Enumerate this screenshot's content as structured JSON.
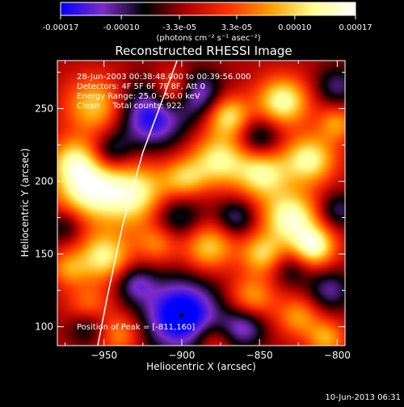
{
  "colorbar": {
    "tick_labels": [
      "-0.00017",
      "-0.00010",
      "-3.3e-05",
      "3.3e-05",
      "0.00010",
      "0.00017"
    ],
    "tick_values": [
      -0.00017,
      -0.0001,
      -3.3e-05,
      3.3e-05,
      0.0001,
      0.00017
    ],
    "range": [
      -0.00017,
      0.00017
    ],
    "unit_label": "(photons cm⁻² s⁻¹ asec⁻²)",
    "colors": [
      "#0000ff",
      "#7d2cc9",
      "#000000",
      "#b00000",
      "#ff3300",
      "#ffa000",
      "#ffff90",
      "#ffffff"
    ]
  },
  "chart_data": {
    "type": "heatmap",
    "title": "Reconstructed RHESSI Image",
    "xlabel": "Heliocentric X (arcsec)",
    "ylabel": "Heliocentric Y (arcsec)",
    "xlim": [
      -980,
      -795
    ],
    "ylim": [
      87,
      283
    ],
    "x_ticks": [
      -950,
      -900,
      -850,
      -800
    ],
    "y_ticks": [
      100,
      150,
      200,
      250
    ],
    "info_lines": [
      "28-Jun-2003 00:38:48.000 to 00:39:56.000",
      "Detectors: 4F 5F 6F 7F 8F, Att 0",
      "Energy Range: 25.0 - 50.0 keV",
      "Clean     Total counts: 922."
    ],
    "peak_label": "Position of Peak = [-811,160]",
    "peak_position": [
      -811,
      160
    ],
    "peak_marker": [
      -900,
      108
    ],
    "limb_curve": [
      [
        -903,
        283
      ],
      [
        -925,
        220
      ],
      [
        -938,
        170
      ],
      [
        -948,
        120
      ],
      [
        -954,
        87
      ]
    ],
    "sources": [
      [
        -835,
        255,
        12,
        0.95
      ],
      [
        -870,
        245,
        10,
        0.8
      ],
      [
        -905,
        262,
        10,
        0.7
      ],
      [
        -955,
        252,
        14,
        0.75
      ],
      [
        -970,
        215,
        11,
        0.6
      ],
      [
        -960,
        195,
        16,
        1.0
      ],
      [
        -928,
        190,
        16,
        0.9
      ],
      [
        -898,
        202,
        10,
        0.6
      ],
      [
        -876,
        215,
        13,
        0.85
      ],
      [
        -848,
        205,
        12,
        0.85
      ],
      [
        -818,
        215,
        12,
        0.9
      ],
      [
        -800,
        240,
        9,
        0.55
      ],
      [
        -830,
        175,
        13,
        1.0
      ],
      [
        -815,
        155,
        10,
        0.95
      ],
      [
        -848,
        150,
        10,
        0.7
      ],
      [
        -883,
        155,
        12,
        0.75
      ],
      [
        -915,
        158,
        10,
        0.55
      ],
      [
        -950,
        148,
        12,
        0.85
      ],
      [
        -973,
        140,
        9,
        0.5
      ],
      [
        -960,
        115,
        10,
        0.45
      ],
      [
        -855,
        120,
        11,
        0.6
      ],
      [
        -825,
        107,
        10,
        0.55
      ],
      [
        -807,
        92,
        9,
        0.6
      ],
      [
        -940,
        95,
        10,
        0.55
      ],
      [
        -880,
        90,
        9,
        0.4
      ],
      [
        -920,
        245,
        16,
        -0.85
      ],
      [
        -890,
        260,
        11,
        -0.7
      ],
      [
        -850,
        230,
        10,
        -0.5
      ],
      [
        -800,
        265,
        10,
        -0.45
      ],
      [
        -945,
        220,
        9,
        -0.5
      ],
      [
        -905,
        175,
        13,
        -0.6
      ],
      [
        -865,
        175,
        9,
        -0.5
      ],
      [
        -800,
        180,
        9,
        -0.45
      ],
      [
        -975,
        170,
        9,
        -0.4
      ],
      [
        -900,
        108,
        18,
        -1.0
      ],
      [
        -860,
        100,
        10,
        -0.6
      ],
      [
        -960,
        100,
        9,
        -0.4
      ],
      [
        -830,
        140,
        9,
        -0.35
      ],
      [
        -805,
        125,
        10,
        -0.5
      ],
      [
        -930,
        130,
        9,
        -0.5
      ]
    ]
  },
  "footer": {
    "timestamp": "10-Jun-2013 06:31"
  }
}
